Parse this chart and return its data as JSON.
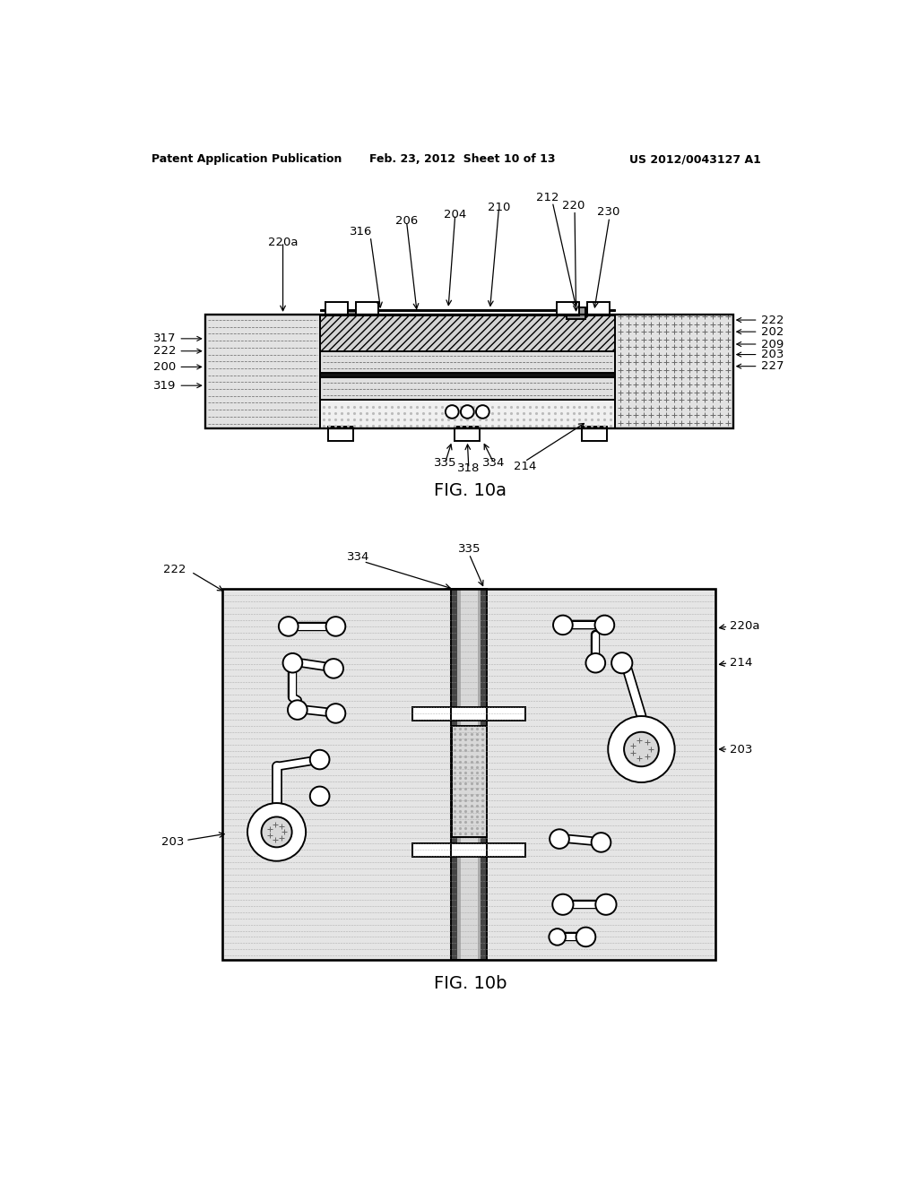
{
  "header_left": "Patent Application Publication",
  "header_mid": "Feb. 23, 2012  Sheet 10 of 13",
  "header_right": "US 2012/0043127 A1",
  "fig_label_a": "FIG. 10a",
  "fig_label_b": "FIG. 10b",
  "bg_color": "#ffffff"
}
